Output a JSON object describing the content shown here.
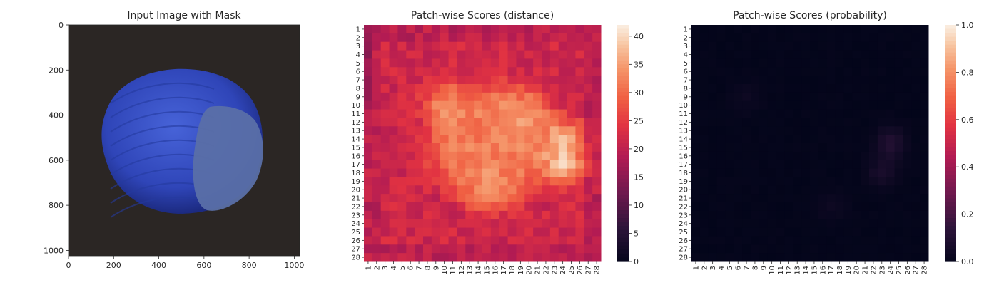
{
  "panels": [
    {
      "title": "Input Image with Mask"
    },
    {
      "title": "Patch-wise Scores (distance)"
    },
    {
      "title": "Patch-wise Scores (probability)"
    }
  ],
  "chart_data": [
    {
      "type": "image",
      "title": "Input Image with Mask",
      "xlim": [
        0,
        1024
      ],
      "ylim": [
        1024,
        0
      ],
      "xticks": [
        0,
        200,
        400,
        600,
        800,
        1000
      ],
      "yticks": [
        0,
        200,
        400,
        600,
        800,
        1000
      ],
      "colors": {
        "background": "#2b2624",
        "nut": "#2f45b8",
        "nut_dark": "#1c2a80",
        "cap": "#5a6fa8"
      }
    },
    {
      "type": "heatmap",
      "title": "Patch-wise Scores (distance)",
      "rows": 28,
      "cols": 28,
      "row_labels": [
        "1",
        "2",
        "3",
        "4",
        "5",
        "6",
        "7",
        "8",
        "9",
        "10",
        "11",
        "12",
        "13",
        "14",
        "15",
        "16",
        "17",
        "18",
        "19",
        "20",
        "21",
        "22",
        "23",
        "24",
        "25",
        "26",
        "27",
        "28"
      ],
      "col_labels": [
        "1",
        "2",
        "3",
        "4",
        "5",
        "6",
        "7",
        "8",
        "9",
        "10",
        "11",
        "12",
        "13",
        "14",
        "15",
        "16",
        "17",
        "18",
        "19",
        "20",
        "21",
        "22",
        "23",
        "24",
        "25",
        "26",
        "27",
        "28"
      ],
      "colorbar": {
        "min": 0,
        "max": 42,
        "ticks": [
          0,
          5,
          10,
          15,
          20,
          25,
          30,
          35,
          40
        ]
      },
      "colormap": "rocket",
      "edge_value": 22,
      "center_value": 32,
      "hotspots": [
        {
          "row": 10,
          "col": 10,
          "value": 36
        },
        {
          "row": 11,
          "col": 20,
          "value": 36
        },
        {
          "row": 14,
          "col": 24,
          "value": 39
        },
        {
          "row": 17,
          "col": 24,
          "value": 42
        },
        {
          "row": 20,
          "col": 15,
          "value": 35
        }
      ]
    },
    {
      "type": "heatmap",
      "title": "Patch-wise Scores (probability)",
      "rows": 28,
      "cols": 28,
      "row_labels": [
        "1",
        "2",
        "3",
        "4",
        "5",
        "6",
        "7",
        "8",
        "9",
        "10",
        "11",
        "12",
        "13",
        "14",
        "15",
        "16",
        "17",
        "18",
        "19",
        "20",
        "21",
        "22",
        "23",
        "24",
        "25",
        "26",
        "27",
        "28"
      ],
      "col_labels": [
        "1",
        "2",
        "3",
        "4",
        "5",
        "6",
        "7",
        "8",
        "9",
        "10",
        "11",
        "12",
        "13",
        "14",
        "15",
        "16",
        "17",
        "18",
        "19",
        "20",
        "21",
        "22",
        "23",
        "24",
        "25",
        "26",
        "27",
        "28"
      ],
      "colorbar": {
        "min": 0.0,
        "max": 1.0,
        "ticks": [
          "0.0",
          "0.2",
          "0.4",
          "0.6",
          "0.8",
          "1.0"
        ]
      },
      "colormap": "rocket",
      "base_value": 0.0,
      "hotspots": [
        {
          "row": 14,
          "col": 24,
          "value": 0.05
        },
        {
          "row": 15,
          "col": 24,
          "value": 0.06
        },
        {
          "row": 18,
          "col": 23,
          "value": 0.07
        },
        {
          "row": 9,
          "col": 7,
          "value": 0.03
        },
        {
          "row": 22,
          "col": 17,
          "value": 0.03
        }
      ]
    }
  ]
}
